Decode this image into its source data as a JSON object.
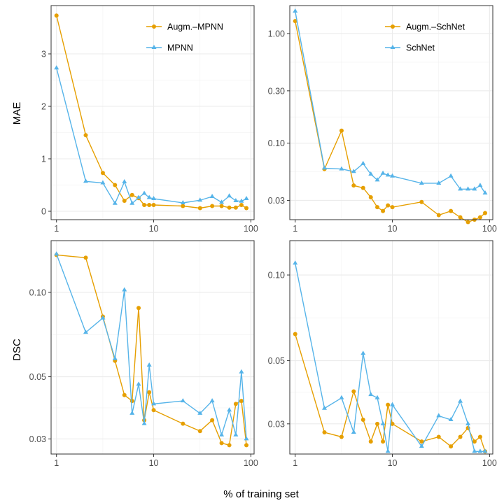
{
  "figure": {
    "xlabel": "% of training set",
    "row_labels": [
      "MAE",
      "DSC"
    ],
    "colors": {
      "augm": "#E69F00",
      "base": "#56B4E9"
    }
  },
  "chart_data": [
    {
      "type": "line",
      "title": "",
      "ylabel": "MAE",
      "xlabel": "% of training set",
      "xscale": "log",
      "yscale": "linear",
      "xlim": [
        0.88,
        108
      ],
      "ylim": [
        -0.16,
        3.92
      ],
      "xticks": [
        1,
        10,
        100
      ],
      "yticks": [
        0,
        1,
        2,
        3
      ],
      "ytick_labels": [
        "0",
        "1",
        "2",
        "3"
      ],
      "grid": true,
      "legend_position": "top-right",
      "series": [
        {
          "name": "Augm.–MPNN",
          "marker": "circle",
          "x": [
            1,
            2,
            3,
            4,
            5,
            6,
            7,
            8,
            9,
            10,
            20,
            30,
            40,
            50,
            60,
            70,
            80,
            90
          ],
          "y": [
            3.73,
            1.45,
            0.73,
            0.5,
            0.2,
            0.31,
            0.25,
            0.12,
            0.12,
            0.12,
            0.1,
            0.06,
            0.1,
            0.1,
            0.07,
            0.07,
            0.12,
            0.06
          ]
        },
        {
          "name": "MPNN",
          "marker": "triangle",
          "x": [
            1,
            2,
            3,
            4,
            5,
            6,
            7,
            8,
            9,
            10,
            20,
            30,
            40,
            50,
            60,
            70,
            80,
            90
          ],
          "y": [
            2.73,
            0.57,
            0.54,
            0.15,
            0.56,
            0.15,
            0.26,
            0.34,
            0.26,
            0.24,
            0.16,
            0.21,
            0.28,
            0.17,
            0.29,
            0.2,
            0.19,
            0.24
          ]
        }
      ]
    },
    {
      "type": "line",
      "title": "",
      "ylabel": "",
      "xlabel": "% of training set",
      "xscale": "log",
      "yscale": "log",
      "xlim": [
        0.88,
        108
      ],
      "ylim": [
        0.02,
        1.8
      ],
      "xticks": [
        1,
        10,
        100
      ],
      "yticks": [
        0.03,
        0.1,
        0.3,
        1.0
      ],
      "ytick_labels": [
        "0.03",
        "0.10",
        "0.30",
        "1.00"
      ],
      "grid": true,
      "legend_position": "top-right",
      "series": [
        {
          "name": "Augm.–SchNet",
          "marker": "circle",
          "x": [
            1,
            2,
            3,
            4,
            5,
            6,
            7,
            8,
            9,
            10,
            20,
            30,
            40,
            50,
            60,
            70,
            80,
            90
          ],
          "y": [
            1.3,
            0.058,
            0.13,
            0.041,
            0.039,
            0.032,
            0.026,
            0.024,
            0.027,
            0.026,
            0.029,
            0.022,
            0.024,
            0.021,
            0.019,
            0.02,
            0.021,
            0.023
          ]
        },
        {
          "name": "SchNet",
          "marker": "triangle",
          "x": [
            1,
            2,
            3,
            4,
            5,
            6,
            7,
            8,
            9,
            10,
            20,
            30,
            40,
            50,
            60,
            70,
            80,
            90
          ],
          "y": [
            1.6,
            0.059,
            0.058,
            0.055,
            0.065,
            0.052,
            0.046,
            0.053,
            0.051,
            0.05,
            0.043,
            0.043,
            0.05,
            0.038,
            0.038,
            0.038,
            0.041,
            0.035
          ]
        }
      ]
    },
    {
      "type": "line",
      "title": "",
      "ylabel": "DSC",
      "xlabel": "% of training set",
      "xscale": "log",
      "yscale": "log",
      "xlim": [
        0.88,
        108
      ],
      "ylim": [
        0.0265,
        0.153
      ],
      "xticks": [
        1,
        10,
        100
      ],
      "yticks": [
        0.03,
        0.05,
        0.1
      ],
      "ytick_labels": [
        "0.03",
        "0.05",
        "0.10"
      ],
      "grid": true,
      "series": [
        {
          "name": "Augm.–SchNet",
          "marker": "circle",
          "x": [
            1,
            2,
            3,
            4,
            5,
            6,
            7,
            8,
            9,
            10,
            20,
            30,
            40,
            50,
            60,
            70,
            80,
            90
          ],
          "y": [
            0.136,
            0.133,
            0.082,
            0.057,
            0.043,
            0.041,
            0.088,
            0.035,
            0.044,
            0.038,
            0.034,
            0.032,
            0.035,
            0.029,
            0.0285,
            0.04,
            0.041,
            0.0285
          ]
        },
        {
          "name": "SchNet",
          "marker": "triangle",
          "x": [
            1,
            2,
            3,
            4,
            5,
            6,
            7,
            8,
            9,
            10,
            20,
            30,
            40,
            50,
            60,
            70,
            80,
            90
          ],
          "y": [
            0.137,
            0.072,
            0.081,
            0.058,
            0.102,
            0.037,
            0.047,
            0.034,
            0.055,
            0.04,
            0.041,
            0.037,
            0.041,
            0.031,
            0.038,
            0.031,
            0.052,
            0.03
          ]
        }
      ]
    },
    {
      "type": "line",
      "title": "",
      "ylabel": "",
      "xlabel": "% of training set",
      "xscale": "log",
      "yscale": "log",
      "xlim": [
        0.88,
        108
      ],
      "ylim": [
        0.0235,
        0.132
      ],
      "xticks": [
        1,
        10,
        100
      ],
      "yticks": [
        0.03,
        0.05,
        0.1
      ],
      "ytick_labels": [
        "0.03",
        "0.05",
        "0.10"
      ],
      "grid": true,
      "series": [
        {
          "name": "Augm.–SchNet",
          "marker": "circle",
          "x": [
            1,
            2,
            3,
            4,
            5,
            6,
            7,
            8,
            9,
            10,
            20,
            30,
            40,
            50,
            60,
            70,
            80,
            90
          ],
          "y": [
            0.062,
            0.028,
            0.027,
            0.039,
            0.031,
            0.026,
            0.03,
            0.026,
            0.035,
            0.03,
            0.026,
            0.027,
            0.025,
            0.027,
            0.029,
            0.026,
            0.027,
            0.024
          ]
        },
        {
          "name": "SchNet",
          "marker": "triangle",
          "x": [
            1,
            2,
            3,
            4,
            5,
            6,
            7,
            8,
            9,
            10,
            20,
            30,
            40,
            50,
            60,
            70,
            80,
            90
          ],
          "y": [
            0.11,
            0.034,
            0.037,
            0.028,
            0.053,
            0.038,
            0.037,
            0.03,
            0.024,
            0.035,
            0.025,
            0.032,
            0.031,
            0.036,
            0.03,
            0.024,
            0.024,
            0.024
          ]
        }
      ]
    }
  ]
}
